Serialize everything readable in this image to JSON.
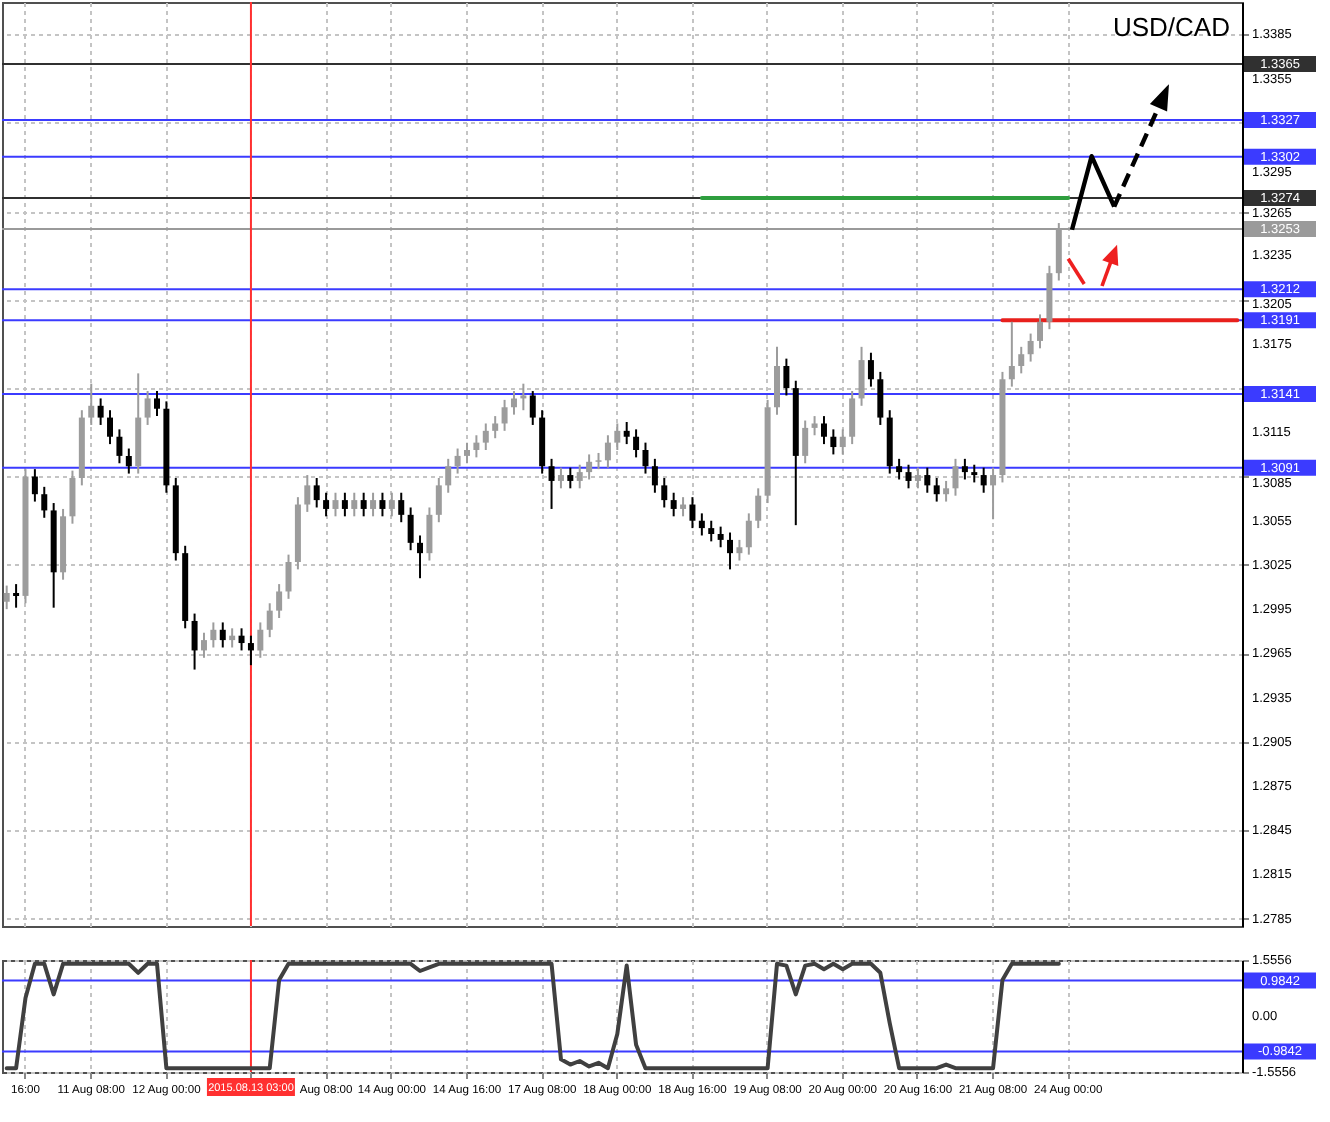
{
  "chart_data": [
    {
      "type": "candlestick",
      "title": "USD/CAD",
      "categories": [
        null,
        null,
        "16:00",
        null,
        null,
        null,
        null,
        null,
        null,
        "11 Aug 08:00",
        null,
        null,
        null,
        null,
        null,
        null,
        null,
        "12 Aug 00:00",
        null,
        null,
        null,
        null,
        null,
        null,
        null,
        null,
        "2015.08.13 03:00",
        null,
        null,
        null,
        null,
        null,
        null,
        null,
        "Aug 08:00",
        null,
        null,
        null,
        null,
        null,
        null,
        "14 Aug 00:00",
        null,
        null,
        null,
        null,
        null,
        null,
        null,
        "14 Aug 16:00",
        null,
        null,
        null,
        null,
        null,
        null,
        null,
        "17 Aug 08:00",
        null,
        null,
        null,
        null,
        null,
        null,
        null,
        "18 Aug 00:00",
        null,
        null,
        null,
        null,
        null,
        null,
        null,
        "18 Aug 16:00",
        null,
        null,
        null,
        null,
        null,
        null,
        null,
        "19 Aug 08:00",
        null,
        null,
        null,
        null,
        null,
        null,
        null,
        "20 Aug 00:00",
        null,
        null,
        null,
        null,
        null,
        null,
        null,
        "20 Aug 16:00",
        null,
        null,
        null,
        null,
        null,
        null,
        null,
        "21 Aug 08:00",
        null,
        null,
        null,
        null,
        null,
        null,
        null,
        "24 Aug 00:00",
        null,
        null,
        null,
        null,
        null,
        null,
        null,
        null,
        null,
        null,
        null,
        null,
        null,
        null,
        null,
        null,
        null,
        null
      ],
      "ohlc": [
        [
          1.3,
          1.3011,
          1.2995,
          1.3006
        ],
        [
          1.3006,
          1.3012,
          1.2996,
          1.3004
        ],
        [
          1.3004,
          1.309,
          1.2999,
          1.3085
        ],
        [
          1.3085,
          1.309,
          1.3068,
          1.3073
        ],
        [
          1.3073,
          1.3078,
          1.3057,
          1.3062
        ],
        [
          1.3062,
          1.3067,
          1.2996,
          1.302
        ],
        [
          1.302,
          1.3063,
          1.3015,
          1.3058
        ],
        [
          1.3058,
          1.3089,
          1.3053,
          1.3084
        ],
        [
          1.3084,
          1.313,
          1.3079,
          1.3125
        ],
        [
          1.3125,
          1.3148,
          1.312,
          1.3133
        ],
        [
          1.3133,
          1.3138,
          1.312,
          1.3125
        ],
        [
          1.3125,
          1.313,
          1.3107,
          1.3112
        ],
        [
          1.3112,
          1.3117,
          1.3094,
          1.3099
        ],
        [
          1.3099,
          1.3104,
          1.3087,
          1.3092
        ],
        [
          1.3092,
          1.3155,
          1.3087,
          1.3125
        ],
        [
          1.3125,
          1.3143,
          1.312,
          1.3138
        ],
        [
          1.3138,
          1.3143,
          1.3126,
          1.3131
        ],
        [
          1.3131,
          1.3136,
          1.3074,
          1.3079
        ],
        [
          1.3079,
          1.3084,
          1.3028,
          1.3033
        ],
        [
          1.3033,
          1.3038,
          1.2982,
          1.2987
        ],
        [
          1.2987,
          1.2992,
          1.2954,
          1.2967
        ],
        [
          1.2967,
          1.2979,
          1.2962,
          1.2974
        ],
        [
          1.2974,
          1.2986,
          1.2969,
          1.2981
        ],
        [
          1.2981,
          1.2986,
          1.2969,
          1.2974
        ],
        [
          1.2974,
          1.2982,
          1.2969,
          1.2977
        ],
        [
          1.2977,
          1.2982,
          1.2967,
          1.2972
        ],
        [
          1.2972,
          1.2977,
          1.2957,
          1.2967
        ],
        [
          1.2967,
          1.2986,
          1.2962,
          1.2981
        ],
        [
          1.2981,
          1.2999,
          1.2976,
          1.2994
        ],
        [
          1.2994,
          1.3012,
          1.2989,
          1.3007
        ],
        [
          1.3007,
          1.3032,
          1.3002,
          1.3027
        ],
        [
          1.3027,
          1.3071,
          1.3022,
          1.3066
        ],
        [
          1.3066,
          1.3086,
          1.3061,
          1.3079
        ],
        [
          1.3079,
          1.3084,
          1.3064,
          1.3069
        ],
        [
          1.3069,
          1.3074,
          1.3058,
          1.3063
        ],
        [
          1.3063,
          1.3074,
          1.3058,
          1.3069
        ],
        [
          1.3069,
          1.3074,
          1.3058,
          1.3063
        ],
        [
          1.3063,
          1.3074,
          1.3058,
          1.3069
        ],
        [
          1.3069,
          1.3074,
          1.3058,
          1.3063
        ],
        [
          1.3063,
          1.3074,
          1.3058,
          1.3069
        ],
        [
          1.3069,
          1.3074,
          1.3058,
          1.3063
        ],
        [
          1.3063,
          1.3074,
          1.3058,
          1.3069
        ],
        [
          1.3069,
          1.3074,
          1.3054,
          1.3059
        ],
        [
          1.3059,
          1.3064,
          1.3035,
          1.304
        ],
        [
          1.304,
          1.3045,
          1.3016,
          1.3033
        ],
        [
          1.3033,
          1.3064,
          1.3028,
          1.3059
        ],
        [
          1.3059,
          1.3084,
          1.3054,
          1.3079
        ],
        [
          1.3079,
          1.3097,
          1.3074,
          1.3092
        ],
        [
          1.3092,
          1.3104,
          1.3087,
          1.3099
        ],
        [
          1.3099,
          1.3108,
          1.3094,
          1.3103
        ],
        [
          1.3103,
          1.3113,
          1.3098,
          1.3108
        ],
        [
          1.3108,
          1.3121,
          1.3103,
          1.3116
        ],
        [
          1.3116,
          1.3126,
          1.3111,
          1.3121
        ],
        [
          1.3121,
          1.3137,
          1.3116,
          1.3132
        ],
        [
          1.3132,
          1.3143,
          1.3127,
          1.3138
        ],
        [
          1.3138,
          1.3148,
          1.313,
          1.314
        ],
        [
          1.314,
          1.3143,
          1.312,
          1.3125
        ],
        [
          1.3125,
          1.313,
          1.3087,
          1.3092
        ],
        [
          1.3092,
          1.3097,
          1.3063,
          1.3082
        ],
        [
          1.3082,
          1.3091,
          1.3077,
          1.3086
        ],
        [
          1.3086,
          1.3091,
          1.3077,
          1.3082
        ],
        [
          1.3082,
          1.3093,
          1.3077,
          1.3088
        ],
        [
          1.3088,
          1.31,
          1.3083,
          1.3095
        ],
        [
          1.3095,
          1.3101,
          1.309,
          1.3096
        ],
        [
          1.3096,
          1.3113,
          1.3091,
          1.3108
        ],
        [
          1.3108,
          1.3121,
          1.3103,
          1.3116
        ],
        [
          1.3116,
          1.3122,
          1.3107,
          1.3112
        ],
        [
          1.3112,
          1.3117,
          1.3098,
          1.3103
        ],
        [
          1.3103,
          1.3108,
          1.3087,
          1.3092
        ],
        [
          1.3092,
          1.3097,
          1.3074,
          1.3079
        ],
        [
          1.3079,
          1.3084,
          1.3064,
          1.3069
        ],
        [
          1.3069,
          1.3074,
          1.3058,
          1.3063
        ],
        [
          1.3063,
          1.3071,
          1.3058,
          1.3066
        ],
        [
          1.3066,
          1.3071,
          1.305,
          1.3055
        ],
        [
          1.3055,
          1.306,
          1.3045,
          1.305
        ],
        [
          1.305,
          1.3055,
          1.3041,
          1.3046
        ],
        [
          1.3046,
          1.3051,
          1.3037,
          1.3042
        ],
        [
          1.3042,
          1.3047,
          1.3022,
          1.3033
        ],
        [
          1.3033,
          1.3042,
          1.3028,
          1.3037
        ],
        [
          1.3037,
          1.306,
          1.3032,
          1.3055
        ],
        [
          1.3055,
          1.3077,
          1.305,
          1.3072
        ],
        [
          1.3072,
          1.3137,
          1.3067,
          1.3132
        ],
        [
          1.3132,
          1.3173,
          1.3127,
          1.316
        ],
        [
          1.316,
          1.3165,
          1.314,
          1.3145
        ],
        [
          1.3145,
          1.315,
          1.3052,
          1.3099
        ],
        [
          1.3099,
          1.3123,
          1.3094,
          1.3118
        ],
        [
          1.3118,
          1.3126,
          1.3113,
          1.3121
        ],
        [
          1.3121,
          1.3126,
          1.3107,
          1.3112
        ],
        [
          1.3112,
          1.3117,
          1.31,
          1.3105
        ],
        [
          1.3105,
          1.3117,
          1.31,
          1.3112
        ],
        [
          1.3112,
          1.3143,
          1.3107,
          1.3138
        ],
        [
          1.3138,
          1.3173,
          1.3133,
          1.3164
        ],
        [
          1.3164,
          1.3169,
          1.3146,
          1.3151
        ],
        [
          1.3151,
          1.3156,
          1.312,
          1.3125
        ],
        [
          1.3125,
          1.313,
          1.3087,
          1.3092
        ],
        [
          1.3092,
          1.3097,
          1.3083,
          1.3088
        ],
        [
          1.3088,
          1.3093,
          1.3077,
          1.3082
        ],
        [
          1.3082,
          1.3091,
          1.3077,
          1.3086
        ],
        [
          1.3086,
          1.3091,
          1.3074,
          1.3079
        ],
        [
          1.3079,
          1.3084,
          1.3068,
          1.3073
        ],
        [
          1.3073,
          1.3082,
          1.3068,
          1.3077
        ],
        [
          1.3077,
          1.3097,
          1.3072,
          1.3092
        ],
        [
          1.3092,
          1.3097,
          1.3083,
          1.3088
        ],
        [
          1.3088,
          1.3093,
          1.3081,
          1.3086
        ],
        [
          1.3086,
          1.3091,
          1.3074,
          1.3079
        ],
        [
          1.3079,
          1.3091,
          1.3056,
          1.3086
        ],
        [
          1.3086,
          1.3156,
          1.3081,
          1.3151
        ],
        [
          1.3151,
          1.319,
          1.3146,
          1.316
        ],
        [
          1.316,
          1.3173,
          1.3155,
          1.3168
        ],
        [
          1.3168,
          1.3182,
          1.3163,
          1.3177
        ],
        [
          1.3177,
          1.3195,
          1.3172,
          1.319
        ],
        [
          1.319,
          1.3228,
          1.3185,
          1.3223
        ],
        [
          1.3223,
          1.3257,
          1.3218,
          1.3253
        ],
        null,
        null,
        null,
        null,
        null,
        null,
        null,
        null,
        null,
        null,
        null,
        null,
        null,
        null,
        null,
        null,
        null,
        null,
        null
      ],
      "series": [
        {
          "type": "line",
          "color": "#2e9e3e",
          "values": [
            null,
            null,
            null,
            null,
            null,
            null,
            null,
            null,
            null,
            null,
            null,
            null,
            null,
            null,
            null,
            null,
            null,
            null,
            null,
            null,
            null,
            null,
            null,
            null,
            null,
            null,
            null,
            null,
            null,
            null,
            null,
            null,
            null,
            null,
            null,
            null,
            null,
            null,
            null,
            null,
            null,
            null,
            null,
            null,
            null,
            null,
            null,
            null,
            null,
            null,
            null,
            null,
            null,
            null,
            null,
            null,
            null,
            null,
            null,
            null,
            null,
            null,
            null,
            null,
            null,
            null,
            null,
            null,
            null,
            null,
            null,
            null,
            null,
            null,
            1.3274,
            1.3274,
            1.3274,
            1.3274,
            1.3274,
            1.3274,
            1.3274,
            1.3274,
            1.3274,
            1.3274,
            1.3274,
            1.3274,
            1.3274,
            1.3274,
            1.3274,
            1.3274,
            1.3274,
            1.3274,
            1.3274,
            1.3274,
            1.3274,
            1.3274,
            1.3274,
            1.3274,
            1.3274,
            1.3274,
            1.3274,
            1.3274,
            1.3274,
            1.3274,
            1.3274,
            1.3274,
            1.3274,
            1.3274,
            1.3274,
            1.3274,
            1.3274,
            1.3274,
            1.3274,
            1.3274,
            null,
            null,
            null,
            null,
            null,
            null,
            null,
            null,
            null,
            null,
            null,
            null,
            null,
            null,
            null,
            null,
            null,
            null
          ]
        },
        {
          "type": "line",
          "color": "#e8201c",
          "values": [
            null,
            null,
            null,
            null,
            null,
            null,
            null,
            null,
            null,
            null,
            null,
            null,
            null,
            null,
            null,
            null,
            null,
            null,
            null,
            null,
            null,
            null,
            null,
            null,
            null,
            null,
            null,
            null,
            null,
            null,
            null,
            null,
            null,
            null,
            null,
            null,
            null,
            null,
            null,
            null,
            null,
            null,
            null,
            null,
            null,
            null,
            null,
            null,
            null,
            null,
            null,
            null,
            null,
            null,
            null,
            null,
            null,
            null,
            null,
            null,
            null,
            null,
            null,
            null,
            null,
            null,
            null,
            null,
            null,
            null,
            null,
            null,
            null,
            null,
            null,
            null,
            null,
            null,
            null,
            null,
            null,
            null,
            null,
            null,
            null,
            null,
            null,
            null,
            null,
            null,
            null,
            null,
            null,
            null,
            null,
            null,
            null,
            null,
            null,
            null,
            null,
            null,
            null,
            null,
            null,
            null,
            1.3191,
            1.3191,
            1.3191,
            1.3191,
            1.3191,
            1.3191,
            1.3191,
            1.3191,
            1.3191,
            1.3191,
            1.3191,
            1.3191,
            1.3191,
            1.3191,
            1.3191,
            1.3191,
            1.3191,
            1.3191,
            1.3191,
            1.3191,
            1.3191,
            1.3191,
            1.3191,
            1.3191,
            1.3191,
            1.3191
          ]
        }
      ],
      "ylim": [
        1.278,
        1.3407
      ],
      "yticks": [
        1.3385,
        1.3355,
        {
          "value": 1.3325,
          "label": null
        },
        1.3295,
        1.3265,
        1.3235,
        1.3205,
        1.3175,
        {
          "value": 1.3145,
          "label": null
        },
        1.3115,
        1.3085,
        1.3055,
        1.3025,
        1.2995,
        1.2965,
        1.2935,
        1.2905,
        1.2875,
        1.2845,
        1.2815,
        1.2785
      ],
      "grid": true,
      "tick_labels": "y",
      "ref_lines": [
        {
          "axis": "y",
          "value": 1.3365,
          "label": "1.3365",
          "color": "#303030"
        },
        {
          "axis": "y",
          "value": 1.3327,
          "label": "1.3327",
          "color": "#3b3bff"
        },
        {
          "axis": "y",
          "value": 1.3302,
          "label": "1.3302",
          "color": "#3b3bff"
        },
        {
          "axis": "y",
          "value": 1.3274,
          "label": "1.3274",
          "color": "#303030"
        },
        {
          "axis": "y",
          "value": 1.3253,
          "label": "1.3253",
          "color": "#9a9a9a"
        },
        {
          "axis": "y",
          "value": 1.3212,
          "label": "1.3212",
          "color": "#3b3bff"
        },
        {
          "axis": "y",
          "value": 1.3191,
          "label": "1.3191",
          "color": "#3b3bff"
        },
        {
          "axis": "y",
          "value": 1.3141,
          "label": "1.3141",
          "color": "#3b3bff"
        },
        {
          "axis": "y",
          "value": 1.3091,
          "label": "1.3091",
          "color": "#3b3bff"
        },
        {
          "axis": "x",
          "value": "2015.08.13 03:00",
          "color": "#ff3030"
        }
      ]
    },
    {
      "type": "line",
      "categories": [
        null,
        null,
        "16:00",
        null,
        null,
        null,
        null,
        null,
        null,
        "11 Aug 08:00",
        null,
        null,
        null,
        null,
        null,
        null,
        null,
        "12 Aug 00:00",
        null,
        null,
        null,
        null,
        null,
        null,
        null,
        null,
        "2015.08.13 03:00",
        null,
        null,
        null,
        null,
        null,
        null,
        null,
        "Aug 08:00",
        null,
        null,
        null,
        null,
        null,
        null,
        "14 Aug 00:00",
        null,
        null,
        null,
        null,
        null,
        null,
        null,
        "14 Aug 16:00",
        null,
        null,
        null,
        null,
        null,
        null,
        null,
        "17 Aug 08:00",
        null,
        null,
        null,
        null,
        null,
        null,
        null,
        "18 Aug 00:00",
        null,
        null,
        null,
        null,
        null,
        null,
        null,
        "18 Aug 16:00",
        null,
        null,
        null,
        null,
        null,
        null,
        null,
        "19 Aug 08:00",
        null,
        null,
        null,
        null,
        null,
        null,
        null,
        "20 Aug 00:00",
        null,
        null,
        null,
        null,
        null,
        null,
        null,
        "20 Aug 16:00",
        null,
        null,
        null,
        null,
        null,
        null,
        null,
        "21 Aug 08:00",
        null,
        null,
        null,
        null,
        null,
        null,
        null,
        "24 Aug 00:00",
        null,
        null,
        null,
        null,
        null,
        null,
        null,
        null,
        null,
        null,
        null,
        null,
        null,
        null,
        null,
        null,
        null,
        null
      ],
      "series": [
        {
          "color": "#404040",
          "values": [
            -1.45,
            -1.45,
            0.5,
            1.45,
            1.45,
            0.6,
            1.45,
            1.45,
            1.45,
            1.45,
            1.45,
            1.45,
            1.45,
            1.45,
            1.2,
            1.45,
            1.45,
            -1.45,
            -1.45,
            -1.45,
            -1.45,
            -1.45,
            -1.45,
            -1.45,
            -1.45,
            -1.45,
            -1.45,
            -1.45,
            -1.45,
            1.0,
            1.45,
            1.45,
            1.45,
            1.45,
            1.45,
            1.45,
            1.45,
            1.45,
            1.45,
            1.45,
            1.45,
            1.45,
            1.45,
            1.45,
            1.25,
            1.35,
            1.45,
            1.45,
            1.45,
            1.45,
            1.45,
            1.45,
            1.45,
            1.45,
            1.45,
            1.45,
            1.45,
            1.45,
            1.45,
            -1.2,
            -1.35,
            -1.25,
            -1.4,
            -1.3,
            -1.45,
            -0.5,
            1.4,
            -0.8,
            -1.45,
            -1.45,
            -1.45,
            -1.45,
            -1.45,
            -1.45,
            -1.45,
            -1.45,
            -1.45,
            -1.45,
            -1.45,
            -1.45,
            -1.45,
            -1.45,
            1.45,
            1.4,
            0.6,
            1.4,
            1.45,
            1.3,
            1.45,
            1.3,
            1.45,
            1.45,
            1.45,
            1.2,
            -0.2,
            -1.45,
            -1.45,
            -1.45,
            -1.45,
            -1.45,
            -1.35,
            -1.45,
            -1.45,
            -1.45,
            -1.45,
            -1.45,
            1.0,
            1.45,
            1.45,
            1.45,
            1.45,
            1.45,
            1.45,
            null,
            null,
            null,
            null,
            null,
            null,
            null,
            null,
            null,
            null,
            null,
            null,
            null,
            null,
            null,
            null,
            null,
            null,
            null
          ]
        }
      ],
      "ylim": [
        -1.5556,
        1.5556
      ],
      "yticks": [
        1.5556,
        {
          "value": 0,
          "label": "0.00"
        },
        -1.5556
      ],
      "grid": true,
      "ref_lines": [
        {
          "axis": "y",
          "value": 0.9842,
          "label": "0.9842",
          "color": "#3b3bff"
        },
        {
          "axis": "y",
          "value": -0.9842,
          "label": "-0.9842",
          "color": "#3b3bff"
        },
        {
          "axis": "x",
          "value": "2015.08.13 03:00",
          "color": "#ff3030"
        }
      ]
    }
  ]
}
